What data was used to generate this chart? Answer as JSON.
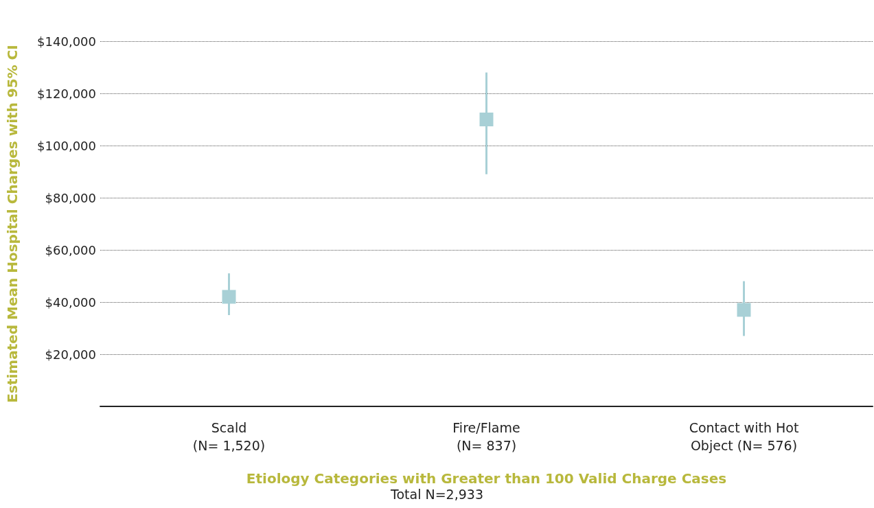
{
  "chart_data": {
    "type": "scatter",
    "xlabel": "Etiology Categories with Greater than 100 Valid Charge Cases",
    "ylabel": "Estimated Mean Hospital Charges with 95% CI",
    "categories": [
      "Scald\n(N= 1,520)",
      "Fire/Flame\n(N= 837)",
      "Contact with Hot\nObject (N= 576)"
    ],
    "values": [
      42000,
      110000,
      37000
    ],
    "color": "#a8d0d6",
    "errors": [
      [
        35000,
        51000
      ],
      [
        89000,
        128000
      ],
      [
        27000,
        48000
      ]
    ],
    "marker": "square",
    "grid": "y",
    "ylim": [
      0,
      140000
    ],
    "yticks": [
      {
        "value": 20000,
        "label": "$20,000"
      },
      {
        "value": 40000,
        "label": "$40,000"
      },
      {
        "value": 60000,
        "label": "$60,000"
      },
      {
        "value": 80000,
        "label": "$80,000"
      },
      {
        "value": 100000,
        "label": "$100,000"
      },
      {
        "value": 120000,
        "label": "$120,000"
      },
      {
        "value": 140000,
        "label": "$140,000"
      }
    ],
    "annotations": [
      "Total N=2,933"
    ]
  }
}
